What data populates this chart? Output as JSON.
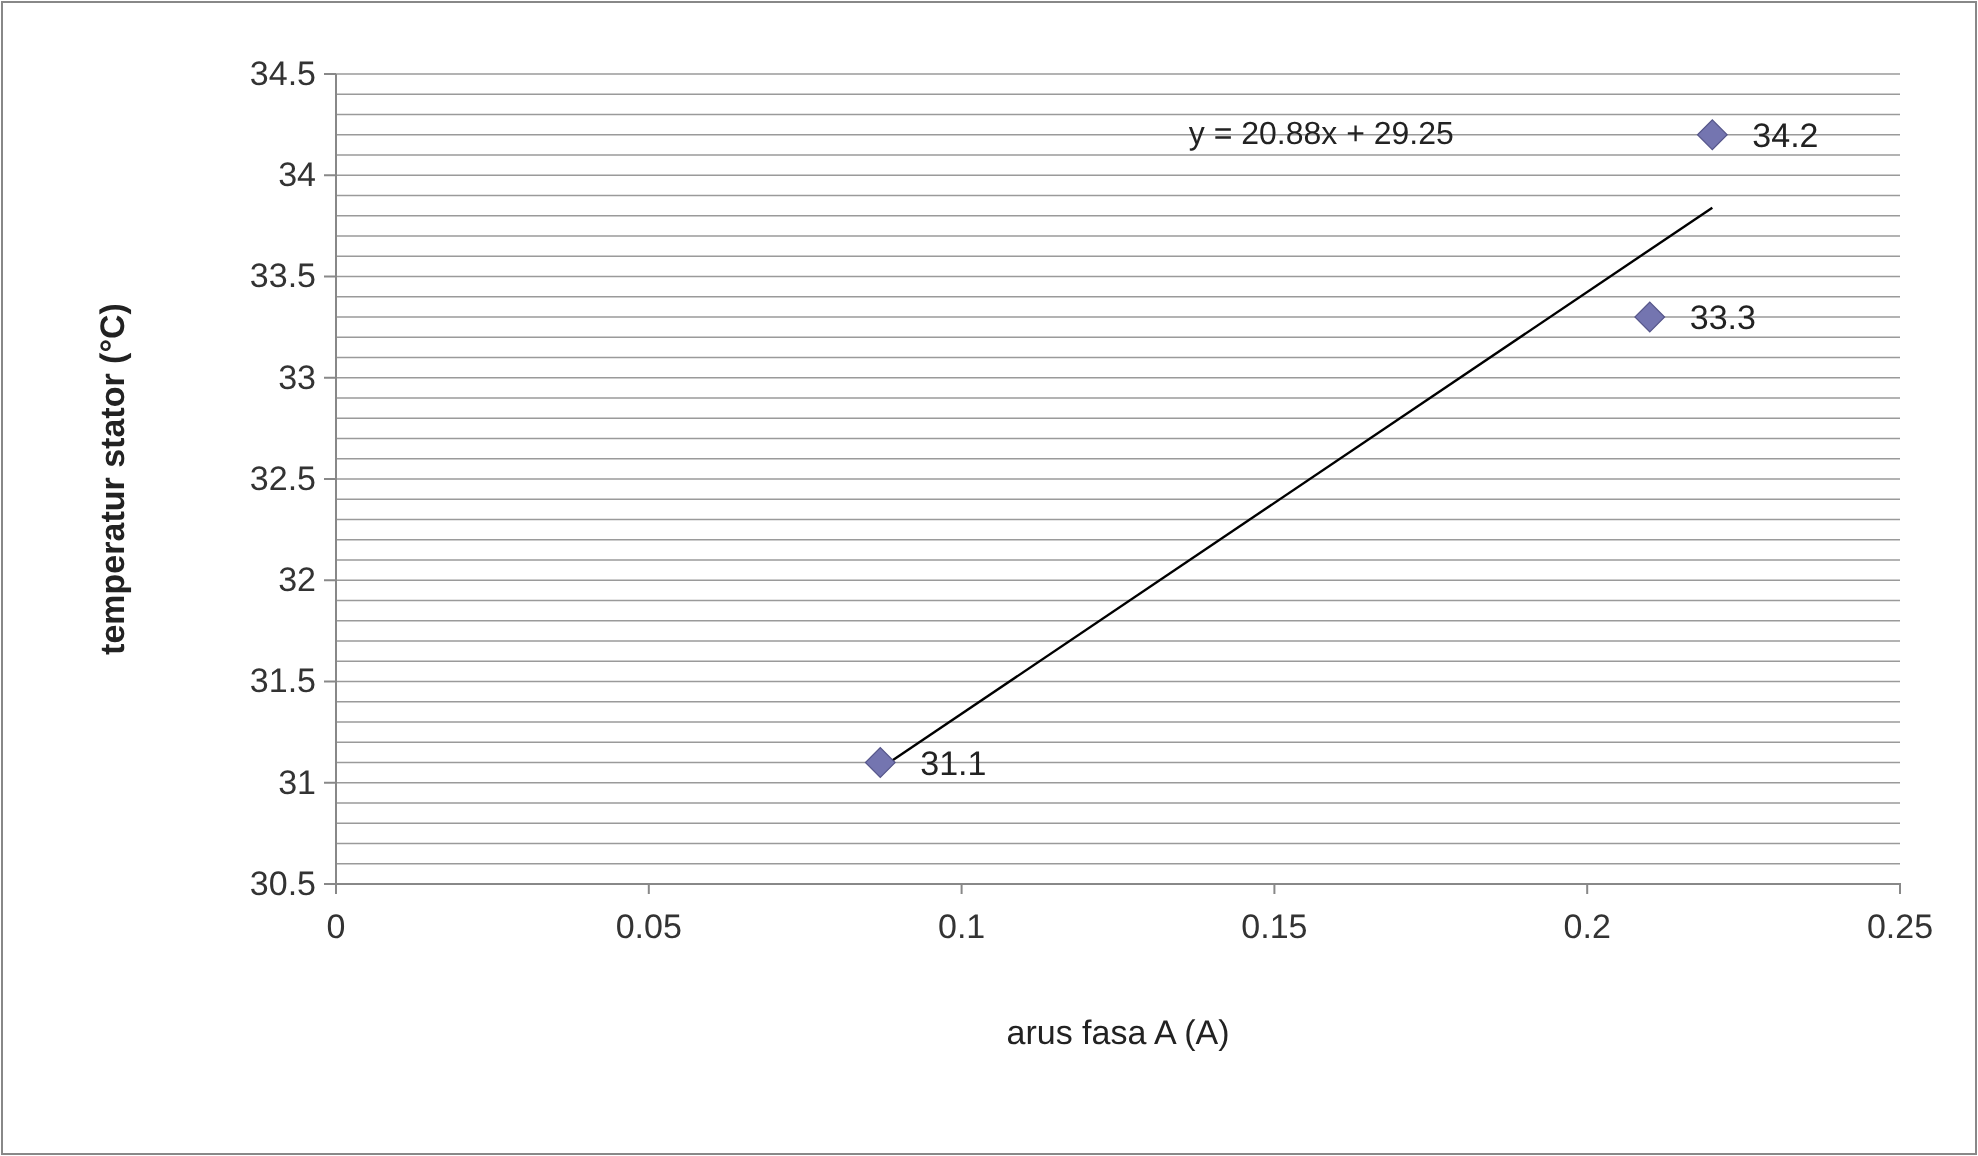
{
  "chart_data": {
    "type": "scatter",
    "xlabel": "arus fasa A (A)",
    "ylabel": "temperatur stator (°C)",
    "xlim": [
      0,
      0.25
    ],
    "xticks": [
      0,
      0.05,
      0.1,
      0.15,
      0.2,
      0.25
    ],
    "ylim": [
      30.5,
      34.5
    ],
    "yticks": [
      30.5,
      {
        "value": 30.6,
        "label": null
      },
      {
        "value": 30.7,
        "label": null
      },
      {
        "value": 30.8,
        "label": null
      },
      {
        "value": 30.9,
        "label": null
      },
      31,
      {
        "value": 31.1,
        "label": null
      },
      {
        "value": 31.2,
        "label": null
      },
      {
        "value": 31.3,
        "label": null
      },
      {
        "value": 31.4,
        "label": null
      },
      31.5,
      {
        "value": 31.6,
        "label": null
      },
      {
        "value": 31.7,
        "label": null
      },
      {
        "value": 31.8,
        "label": null
      },
      {
        "value": 31.9,
        "label": null
      },
      32,
      {
        "value": 32.1,
        "label": null
      },
      {
        "value": 32.2,
        "label": null
      },
      {
        "value": 32.3,
        "label": null
      },
      {
        "value": 32.4,
        "label": null
      },
      32.5,
      {
        "value": 32.6,
        "label": null
      },
      {
        "value": 32.7,
        "label": null
      },
      {
        "value": 32.8,
        "label": null
      },
      {
        "value": 32.9,
        "label": null
      },
      33,
      {
        "value": 33.1,
        "label": null
      },
      {
        "value": 33.2,
        "label": null
      },
      {
        "value": 33.3,
        "label": null
      },
      {
        "value": 33.4,
        "label": null
      },
      33.5,
      {
        "value": 33.6,
        "label": null
      },
      {
        "value": 33.7,
        "label": null
      },
      {
        "value": 33.8,
        "label": null
      },
      {
        "value": 33.9,
        "label": null
      },
      34,
      {
        "value": 34.1,
        "label": null
      },
      {
        "value": 34.2,
        "label": null
      },
      {
        "value": 34.3,
        "label": null
      },
      {
        "value": 34.4,
        "label": null
      },
      34.5
    ],
    "grid": "y",
    "series": [
      {
        "color": "#7475b0",
        "marker": "diamond",
        "x": [
          0.087,
          0.21,
          0.22
        ],
        "values": [
          31.1,
          33.3,
          34.2
        ],
        "value_labels": [
          "31.1",
          "33.3",
          "34.2"
        ]
      },
      {
        "type": "line",
        "color": "#000000",
        "x": [
          0.087,
          0.22
        ],
        "values": [
          31.07,
          33.84
        ]
      }
    ],
    "annotations": [
      "y = 20.88x + 29.25"
    ]
  }
}
